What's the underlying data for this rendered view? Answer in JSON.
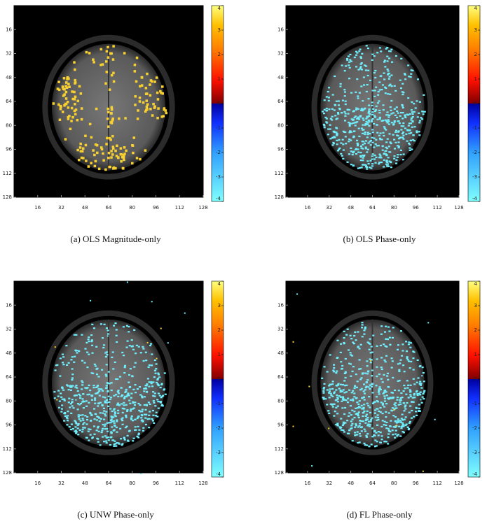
{
  "axis_range": [
    0,
    128
  ],
  "axis_ticks": [
    16,
    32,
    48,
    64,
    80,
    96,
    112,
    128
  ],
  "colorbar_range": [
    -4,
    4
  ],
  "colorbar_ticks": [
    4,
    3,
    2,
    1,
    0,
    -1,
    -2,
    -3,
    -4
  ],
  "panels": [
    {
      "caption": "(a) OLS Magnitude-only"
    },
    {
      "caption": "(b) OLS Phase-only"
    },
    {
      "caption": "(c) UNW Phase-only"
    },
    {
      "caption": "(d) FL Phase-only"
    }
  ]
}
